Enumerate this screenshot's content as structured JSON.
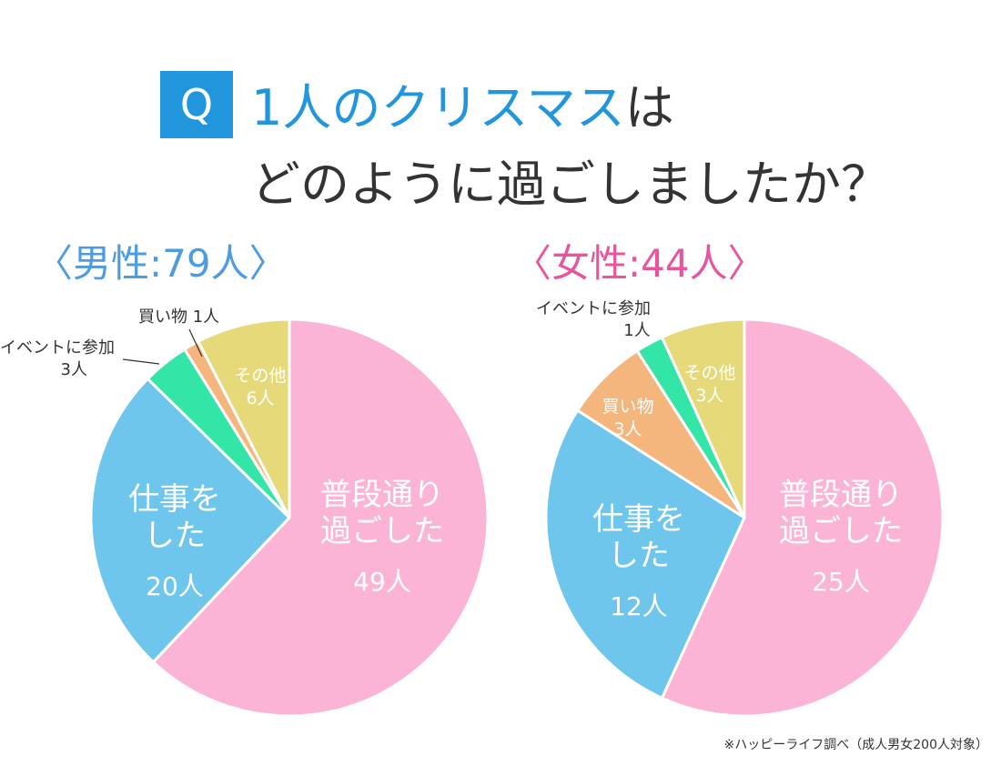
{
  "header": {
    "q_badge": "Q",
    "title_highlight": "1人のクリスマス",
    "title_tail": "は",
    "title_line2": "どのように過ごしましたか？"
  },
  "footnote": "※ハッピーライフ調べ（成人男女200人対象）",
  "colors": {
    "accent_blue": "#2196dd",
    "male_label": "#4d9be0",
    "female_label": "#e8559c",
    "pink": "#fbb4d6",
    "blue": "#6ec6ec",
    "green": "#33e6a8",
    "orange": "#f4b67d",
    "yellow": "#e6d97a"
  },
  "chart_data": [
    {
      "type": "pie",
      "title": "〈男性:79人〉",
      "categories": [
        "普段通り過ごした",
        "仕事をした",
        "イベントに参加",
        "買い物",
        "その他"
      ],
      "values": [
        49,
        20,
        3,
        1,
        6
      ],
      "unit": "人",
      "slice_colors": [
        "#fbb4d6",
        "#6ec6ec",
        "#33e6a8",
        "#f4b67d",
        "#e6d97a"
      ],
      "labels": [
        {
          "lines": [
            "普段通り",
            "過ごした"
          ],
          "count": "49人",
          "placement": "inside"
        },
        {
          "lines": [
            "仕事を",
            "した"
          ],
          "count": "20人",
          "placement": "inside"
        },
        {
          "lines": [
            "イベントに参加"
          ],
          "count": "3人",
          "placement": "outside"
        },
        {
          "lines": [
            "買い物"
          ],
          "count": "1人",
          "placement": "outside"
        },
        {
          "lines": [
            "その他"
          ],
          "count": "6人",
          "placement": "inside"
        }
      ]
    },
    {
      "type": "pie",
      "title": "〈女性:44人〉",
      "categories": [
        "普段通り過ごした",
        "仕事をした",
        "買い物",
        "イベントに参加",
        "その他"
      ],
      "values": [
        25,
        12,
        3,
        1,
        3
      ],
      "unit": "人",
      "slice_colors": [
        "#fbb4d6",
        "#6ec6ec",
        "#f4b67d",
        "#33e6a8",
        "#e6d97a"
      ],
      "labels": [
        {
          "lines": [
            "普段通り",
            "過ごした"
          ],
          "count": "25人",
          "placement": "inside"
        },
        {
          "lines": [
            "仕事を",
            "した"
          ],
          "count": "12人",
          "placement": "inside"
        },
        {
          "lines": [
            "買い物"
          ],
          "count": "3人",
          "placement": "inside"
        },
        {
          "lines": [
            "イベントに参加"
          ],
          "count": "1人",
          "placement": "outside"
        },
        {
          "lines": [
            "その他"
          ],
          "count": "3人",
          "placement": "inside"
        }
      ]
    }
  ]
}
